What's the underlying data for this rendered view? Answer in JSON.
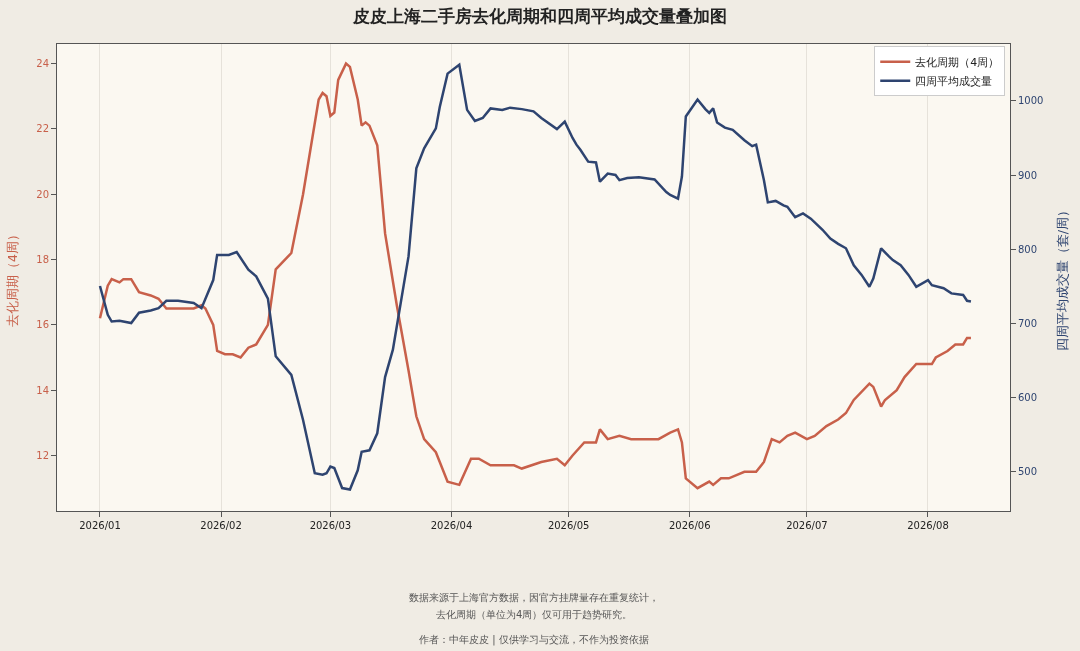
{
  "chart_data": {
    "type": "line",
    "title": "皮皮上海二手房去化周期和四周平均成交量叠加图",
    "ylabel": "去化周期（4周）",
    "y2label": "四周平均成交量（套/周）",
    "annotations": [
      "数据来源于上海官方数据，因官方挂牌量存在重复统计，",
      "去化周期（单位为4周）仅可用于趋势研究。",
      "作者：中年皮皮 | 仅供学习与交流，不作为投资依据"
    ],
    "xlim": [
      "2025-12-21",
      "2026-08-22"
    ],
    "xticks": [
      {
        "value": "2026-01-01",
        "label": "2026/01"
      },
      {
        "value": "2026-02-01",
        "label": "2026/02"
      },
      {
        "value": "2026-03-01",
        "label": "2026/03"
      },
      {
        "value": "2026-04-01",
        "label": "2026/04"
      },
      {
        "value": "2026-05-01",
        "label": "2026/05"
      },
      {
        "value": "2026-06-01",
        "label": "2026/06"
      },
      {
        "value": "2026-07-01",
        "label": "2026/07"
      },
      {
        "value": "2026-08-01",
        "label": "2026/08"
      }
    ],
    "ylim": [
      10.3,
      24.6
    ],
    "yticks": [
      12,
      14,
      16,
      18,
      20,
      22,
      24
    ],
    "y2lim": [
      446,
      1077
    ],
    "y2ticks": [
      500,
      600,
      700,
      800,
      900,
      1000
    ],
    "grid": "x",
    "legend": "top right",
    "line_style": "solid",
    "marker": "none",
    "series": [
      {
        "name": "去化周期（4周）",
        "color": "#c8604a",
        "x": [
          "2026-01-01",
          "2026-01-03",
          "2026-01-04",
          "2026-01-06",
          "2026-01-07",
          "2026-01-09",
          "2026-01-11",
          "2026-01-14",
          "2026-01-16",
          "2026-01-18",
          "2026-01-21",
          "2026-01-25",
          "2026-01-27",
          "2026-01-28",
          "2026-01-30",
          "2026-01-31",
          "2026-02-02",
          "2026-02-04",
          "2026-02-06",
          "2026-02-08",
          "2026-02-10",
          "2026-02-13",
          "2026-02-15",
          "2026-02-19",
          "2026-02-22",
          "2026-02-26",
          "2026-02-27",
          "2026-02-28",
          "2026-03-01",
          "2026-03-02",
          "2026-03-03",
          "2026-03-05",
          "2026-03-06",
          "2026-03-08",
          "2026-03-09",
          "2026-03-10",
          "2026-03-11",
          "2026-03-13",
          "2026-03-15",
          "2026-03-18",
          "2026-03-21",
          "2026-03-23",
          "2026-03-25",
          "2026-03-28",
          "2026-03-29",
          "2026-03-31",
          "2026-04-03",
          "2026-04-06",
          "2026-04-08",
          "2026-04-11",
          "2026-04-17",
          "2026-04-19",
          "2026-04-24",
          "2026-04-28",
          "2026-04-30",
          "2026-05-02",
          "2026-05-05",
          "2026-05-08",
          "2026-05-09",
          "2026-05-11",
          "2026-05-14",
          "2026-05-17",
          "2026-05-19",
          "2026-05-24",
          "2026-05-27",
          "2026-05-29",
          "2026-05-30",
          "2026-05-31",
          "2026-06-03",
          "2026-06-06",
          "2026-06-07",
          "2026-06-09",
          "2026-06-11",
          "2026-06-15",
          "2026-06-18",
          "2026-06-20",
          "2026-06-22",
          "2026-06-24",
          "2026-06-26",
          "2026-06-28",
          "2026-07-01",
          "2026-07-03",
          "2026-07-06",
          "2026-07-09",
          "2026-07-11",
          "2026-07-13",
          "2026-07-17",
          "2026-07-18",
          "2026-07-20",
          "2026-07-21",
          "2026-07-24",
          "2026-07-26",
          "2026-07-29",
          "2026-08-02",
          "2026-08-03",
          "2026-08-06",
          "2026-08-08",
          "2026-08-10",
          "2026-08-11",
          "2026-08-12"
        ],
        "values": [
          16.2,
          17.2,
          17.4,
          17.3,
          17.4,
          17.4,
          17.0,
          16.9,
          16.8,
          16.5,
          16.5,
          16.5,
          16.6,
          16.5,
          16.0,
          15.2,
          15.1,
          15.1,
          15.0,
          15.3,
          15.4,
          16.0,
          17.7,
          18.2,
          20.0,
          22.9,
          23.1,
          23.0,
          22.4,
          22.5,
          23.5,
          24.0,
          23.9,
          22.9,
          22.1,
          22.2,
          22.1,
          21.5,
          18.8,
          16.6,
          14.6,
          13.2,
          12.5,
          12.1,
          11.8,
          11.2,
          11.1,
          11.9,
          11.9,
          11.7,
          11.7,
          11.6,
          11.8,
          11.9,
          11.7,
          12.0,
          12.4,
          12.4,
          12.8,
          12.5,
          12.6,
          12.5,
          12.5,
          12.5,
          12.7,
          12.8,
          12.4,
          11.3,
          11.0,
          11.2,
          11.1,
          11.3,
          11.3,
          11.5,
          11.5,
          11.8,
          12.5,
          12.4,
          12.6,
          12.7,
          12.5,
          12.6,
          12.9,
          13.1,
          13.3,
          13.7,
          14.2,
          14.1,
          13.5,
          13.7,
          14.0,
          14.4,
          14.8,
          14.8,
          15.0,
          15.2,
          15.4,
          15.4,
          15.6,
          15.6
        ]
      },
      {
        "name": "四周平均成交量",
        "color": "#2e4470",
        "axis": "y2",
        "x": [
          "2026-01-01",
          "2026-01-03",
          "2026-01-04",
          "2026-01-06",
          "2026-01-09",
          "2026-01-11",
          "2026-01-14",
          "2026-01-16",
          "2026-01-18",
          "2026-01-21",
          "2026-01-25",
          "2026-01-27",
          "2026-01-30",
          "2026-01-31",
          "2026-02-03",
          "2026-02-05",
          "2026-02-08",
          "2026-02-10",
          "2026-02-13",
          "2026-02-15",
          "2026-02-19",
          "2026-02-22",
          "2026-02-25",
          "2026-02-27",
          "2026-02-28",
          "2026-03-01",
          "2026-03-02",
          "2026-03-04",
          "2026-03-06",
          "2026-03-08",
          "2026-03-09",
          "2026-03-11",
          "2026-03-13",
          "2026-03-15",
          "2026-03-17",
          "2026-03-21",
          "2026-03-23",
          "2026-03-25",
          "2026-03-28",
          "2026-03-29",
          "2026-03-31",
          "2026-04-03",
          "2026-04-05",
          "2026-04-07",
          "2026-04-09",
          "2026-04-11",
          "2026-04-14",
          "2026-04-16",
          "2026-04-19",
          "2026-04-22",
          "2026-04-24",
          "2026-04-28",
          "2026-04-30",
          "2026-05-02",
          "2026-05-03",
          "2026-05-04",
          "2026-05-06",
          "2026-05-08",
          "2026-05-09",
          "2026-05-11",
          "2026-05-13",
          "2026-05-14",
          "2026-05-16",
          "2026-05-19",
          "2026-05-23",
          "2026-05-26",
          "2026-05-27",
          "2026-05-29",
          "2026-05-30",
          "2026-05-31",
          "2026-06-03",
          "2026-06-05",
          "2026-06-06",
          "2026-06-07",
          "2026-06-08",
          "2026-06-10",
          "2026-06-12",
          "2026-06-15",
          "2026-06-17",
          "2026-06-18",
          "2026-06-20",
          "2026-06-21",
          "2026-06-23",
          "2026-06-25",
          "2026-06-26",
          "2026-06-28",
          "2026-06-30",
          "2026-07-02",
          "2026-07-05",
          "2026-07-07",
          "2026-07-09",
          "2026-07-11",
          "2026-07-13",
          "2026-07-15",
          "2026-07-17",
          "2026-07-18",
          "2026-07-20",
          "2026-07-22",
          "2026-07-23",
          "2026-07-25",
          "2026-07-27",
          "2026-07-29",
          "2026-08-01",
          "2026-08-02",
          "2026-08-05",
          "2026-08-07",
          "2026-08-10",
          "2026-08-11",
          "2026-08-12"
        ],
        "values": [
          750,
          711,
          702,
          703,
          700,
          714,
          717,
          720,
          730,
          730,
          727,
          720,
          758,
          792,
          792,
          796,
          772,
          763,
          733,
          655,
          630,
          569,
          497,
          495,
          497,
          506,
          504,
          477,
          475,
          501,
          526,
          528,
          551,
          627,
          664,
          790,
          909,
          936,
          963,
          992,
          1037,
          1049,
          988,
          973,
          977,
          990,
          988,
          991,
          989,
          986,
          977,
          962,
          972,
          950,
          941,
          934,
          918,
          917,
          891,
          902,
          900,
          893,
          896,
          897,
          894,
          877,
          873,
          868,
          898,
          979,
          1002,
          989,
          984,
          990,
          971,
          964,
          961,
          947,
          939,
          941,
          893,
          863,
          865,
          859,
          857,
          843,
          848,
          841,
          826,
          814,
          807,
          801,
          778,
          765,
          749,
          760,
          801,
          790,
          785,
          778,
          765,
          749,
          758,
          751,
          747,
          740,
          738,
          730,
          729
        ]
      }
    ]
  }
}
